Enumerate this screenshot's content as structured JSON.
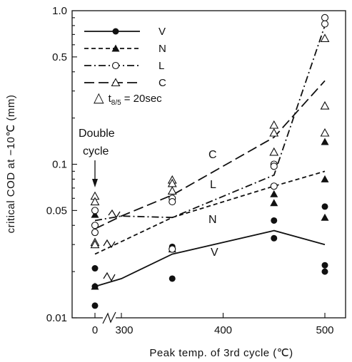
{
  "chart_data": {
    "type": "line",
    "xlabel": "Peak temp. of 3rd cycle (℃)",
    "ylabel": "critical COD at −10℃ (mm)",
    "yscale": "log",
    "ylim": [
      0.01,
      1.0
    ],
    "y_ticks": [
      {
        "value": 0.01,
        "label": "0.01"
      },
      {
        "value": 0.05,
        "label": "0.05"
      },
      {
        "value": 0.1,
        "label": "0.1"
      },
      {
        "value": 0.5,
        "label": "0.5"
      },
      {
        "value": 1.0,
        "label": "1.0"
      }
    ],
    "x_ticks": [
      {
        "value": 0,
        "label": "0"
      },
      {
        "value": 300,
        "label": "300"
      },
      {
        "value": 400,
        "label": "400"
      },
      {
        "value": 500,
        "label": "500"
      }
    ],
    "x_axis_break": true,
    "legend": [
      {
        "label": "V",
        "line": "solid",
        "marker": "filled-circle"
      },
      {
        "label": "N",
        "line": "dashed",
        "marker": "filled-triangle"
      },
      {
        "label": "L",
        "line": "dash-dot",
        "marker": "open-circle"
      },
      {
        "label": "C",
        "line": "long-dash",
        "marker": "open-triangle"
      }
    ],
    "annotation_t85": {
      "symbol": "△",
      "t": "t",
      "sub": "8/5",
      "rest": "= 20sec"
    },
    "double_cycle_label": [
      "Double",
      "cycle"
    ],
    "series": [
      {
        "name": "V",
        "curve_label": "V",
        "line": [
          [
            0,
            0.016
          ],
          [
            300,
            0.018
          ],
          [
            350,
            0.026
          ],
          [
            450,
            0.037
          ],
          [
            500,
            0.03
          ]
        ],
        "points": [
          [
            0,
            0.021
          ],
          [
            0,
            0.016
          ],
          [
            0,
            0.012
          ],
          [
            350,
            0.029
          ],
          [
            350,
            0.028
          ],
          [
            350,
            0.018
          ],
          [
            450,
            0.043
          ],
          [
            450,
            0.033
          ],
          [
            500,
            0.053
          ],
          [
            500,
            0.022
          ],
          [
            500,
            0.02
          ]
        ]
      },
      {
        "name": "N",
        "curve_label": "N",
        "line": [
          [
            0,
            0.026
          ],
          [
            350,
            0.045
          ],
          [
            450,
            0.072
          ],
          [
            500,
            0.09
          ]
        ],
        "points": [
          [
            0,
            0.047
          ],
          [
            0,
            0.016
          ],
          [
            350,
            0.028
          ],
          [
            450,
            0.064
          ],
          [
            450,
            0.056
          ],
          [
            500,
            0.14
          ],
          [
            500,
            0.08
          ],
          [
            500,
            0.045
          ]
        ]
      },
      {
        "name": "L",
        "curve_label": "L",
        "line": [
          [
            0,
            0.043
          ],
          [
            300,
            0.046
          ],
          [
            350,
            0.045
          ],
          [
            450,
            0.085
          ],
          [
            500,
            0.8
          ]
        ],
        "points": [
          [
            0,
            0.05
          ],
          [
            0,
            0.04
          ],
          [
            0,
            0.036
          ],
          [
            350,
            0.06
          ],
          [
            350,
            0.057
          ],
          [
            350,
            0.028
          ],
          [
            450,
            0.1
          ],
          [
            450,
            0.097
          ],
          [
            450,
            0.072
          ],
          [
            500,
            0.9
          ],
          [
            500,
            0.82
          ]
        ]
      },
      {
        "name": "C",
        "curve_label": "C",
        "line": [
          [
            0,
            0.038
          ],
          [
            300,
            0.046
          ],
          [
            350,
            0.063
          ],
          [
            450,
            0.15
          ],
          [
            500,
            0.35
          ]
        ],
        "points": [
          [
            0,
            0.062
          ],
          [
            0,
            0.057
          ],
          [
            0,
            0.031
          ],
          [
            0,
            0.03
          ],
          [
            350,
            0.079
          ],
          [
            350,
            0.075
          ],
          [
            350,
            0.067
          ],
          [
            450,
            0.18
          ],
          [
            450,
            0.16
          ],
          [
            450,
            0.12
          ],
          [
            500,
            0.66
          ],
          [
            500,
            0.24
          ],
          [
            500,
            0.16
          ]
        ]
      }
    ]
  }
}
